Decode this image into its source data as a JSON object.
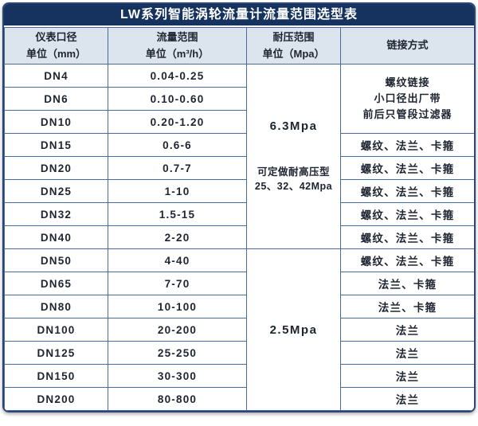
{
  "title": "LW系列智能涡轮流量计流量范围选型表",
  "columns": [
    {
      "line1": "仪表口径",
      "line2": "单位（mm）"
    },
    {
      "line1": "流量范围",
      "line2": "单位（m³/h）"
    },
    {
      "line1": "耐压范围",
      "line2": "单位（Mpa）"
    },
    {
      "line1": "链接方式",
      "line2": ""
    }
  ],
  "rows": [
    {
      "dn": "DN4",
      "range": "0.04-0.25"
    },
    {
      "dn": "DN6",
      "range": "0.10-0.60"
    },
    {
      "dn": "DN10",
      "range": "0.20-1.20"
    },
    {
      "dn": "DN15",
      "range": "0.6-6",
      "link": "螺纹、法兰、卡箍"
    },
    {
      "dn": "DN20",
      "range": "0.7-7",
      "link": "螺纹、法兰、卡箍"
    },
    {
      "dn": "DN25",
      "range": "1-10",
      "link": "螺纹、法兰、卡箍"
    },
    {
      "dn": "DN32",
      "range": "1.5-15",
      "link": "螺纹、法兰、卡箍"
    },
    {
      "dn": "DN40",
      "range": "2-20",
      "link": "螺纹、法兰、卡箍"
    },
    {
      "dn": "DN50",
      "range": "4-40",
      "link": "螺纹、法兰、卡箍"
    },
    {
      "dn": "DN65",
      "range": "7-70",
      "link": "法兰、卡箍"
    },
    {
      "dn": "DN80",
      "range": "10-100",
      "link": "法兰、卡箍"
    },
    {
      "dn": "DN100",
      "range": "20-200",
      "link": "法兰"
    },
    {
      "dn": "DN125",
      "range": "25-250",
      "link": "法兰"
    },
    {
      "dn": "DN150",
      "range": "30-300",
      "link": "法兰"
    },
    {
      "dn": "DN200",
      "range": "80-800",
      "link": "法兰"
    }
  ],
  "pressure_groups": [
    {
      "value": "6.3Mpa",
      "note_line1": "可定做耐高压型",
      "note_line2": "25、32、42Mpa",
      "rowspan": 8
    },
    {
      "value": "2.5Mpa",
      "rowspan": 7
    }
  ],
  "small_bore_note": [
    "螺纹链接",
    "小口径出厂带",
    "前后只管段过滤器"
  ],
  "colors": {
    "title_bg": "#16335f",
    "header_bg": "#dce4ee",
    "inner_border": "#4a6a9c",
    "outer_border": "#2a4576"
  }
}
